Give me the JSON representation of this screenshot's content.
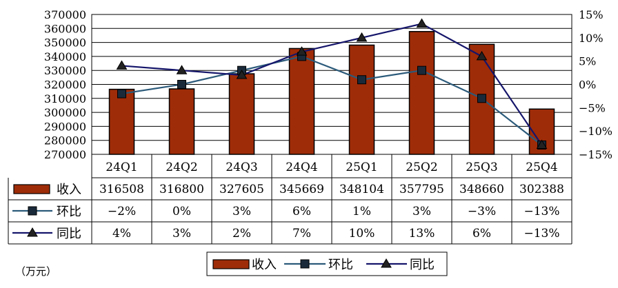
{
  "chart_data": {
    "type": "bar",
    "categories": [
      "24Q1",
      "24Q2",
      "24Q3",
      "24Q4",
      "25Q1",
      "25Q2",
      "25Q3",
      "25Q4"
    ],
    "unit": "（万元）",
    "y_left": {
      "min": 270000,
      "max": 370000,
      "step": 10000,
      "tick_labels": [
        "370000",
        "360000",
        "350000",
        "340000",
        "330000",
        "320000",
        "310000",
        "300000",
        "290000",
        "280000",
        "270000"
      ]
    },
    "y_right": {
      "min": -15,
      "max": 15,
      "step": 5,
      "tick_labels": [
        "15%",
        "10%",
        "5%",
        "0%",
        "−5%",
        "−10%",
        "−15%"
      ]
    },
    "series": [
      {
        "name": "收入",
        "kind": "bar",
        "axis": "left",
        "color": "#9e2c08",
        "values": [
          316508,
          316800,
          327605,
          345669,
          348104,
          357795,
          348660,
          302388
        ],
        "labels": [
          "316508",
          "316800",
          "327605",
          "345669",
          "348104",
          "357795",
          "348660",
          "302388"
        ]
      },
      {
        "name": "环比",
        "kind": "line",
        "axis": "right",
        "marker": "square",
        "color": "#2b5a7a",
        "values": [
          -2,
          0,
          3,
          6,
          1,
          3,
          -3,
          -13
        ],
        "labels": [
          "−2%",
          "0%",
          "3%",
          "6%",
          "1%",
          "3%",
          "−3%",
          "−13%"
        ]
      },
      {
        "name": "同比",
        "kind": "line",
        "axis": "right",
        "marker": "triangle",
        "color": "#15156b",
        "values": [
          4,
          3,
          2,
          7,
          10,
          13,
          6,
          -13
        ],
        "labels": [
          "4%",
          "3%",
          "2%",
          "7%",
          "10%",
          "13%",
          "6%",
          "−13%"
        ]
      }
    ],
    "legend_position": "bottom-center",
    "grid": "horizontal"
  }
}
